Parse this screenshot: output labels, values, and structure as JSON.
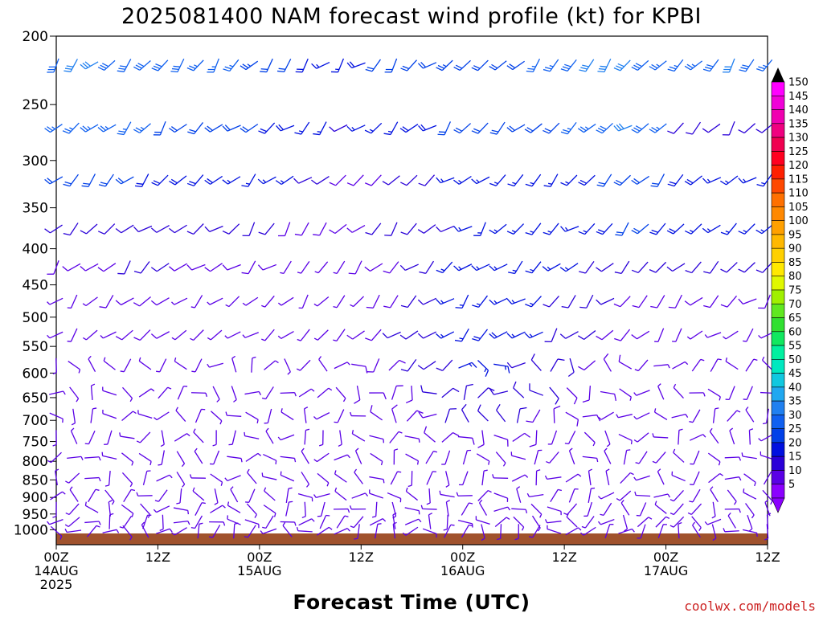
{
  "chart_data": {
    "type": "wind-barb",
    "title": "2025081400 NAM forecast wind profile (kt) for KPBI",
    "xlabel": "Forecast Time (UTC)",
    "y_axis": {
      "scale": "log",
      "inverted": true,
      "range": [
        200,
        1050
      ],
      "tick_labels": [
        200,
        250,
        300,
        350,
        400,
        450,
        500,
        550,
        600,
        650,
        700,
        750,
        800,
        850,
        900,
        950,
        1000
      ]
    },
    "x_axis": {
      "range_hours": [
        0,
        84
      ],
      "ticks": [
        {
          "hour": 0,
          "lines": [
            "00Z",
            "14AUG",
            "2025"
          ]
        },
        {
          "hour": 12,
          "lines": [
            "12Z"
          ]
        },
        {
          "hour": 24,
          "lines": [
            "00Z",
            "15AUG"
          ]
        },
        {
          "hour": 36,
          "lines": [
            "12Z"
          ]
        },
        {
          "hour": 48,
          "lines": [
            "00Z",
            "16AUG"
          ]
        },
        {
          "hour": 60,
          "lines": [
            "12Z"
          ]
        },
        {
          "hour": 72,
          "lines": [
            "00Z",
            "17AUG"
          ]
        },
        {
          "hour": 84,
          "lines": [
            "12Z"
          ]
        }
      ]
    },
    "colorbar": {
      "levels": [
        5,
        10,
        15,
        20,
        25,
        30,
        35,
        40,
        45,
        50,
        55,
        60,
        65,
        70,
        75,
        80,
        85,
        90,
        95,
        100,
        105,
        110,
        115,
        120,
        125,
        130,
        135,
        140,
        145,
        150
      ],
      "colors": [
        "#8b00ff",
        "#5a00e6",
        "#2a00d8",
        "#0010e0",
        "#0040e8",
        "#1060f0",
        "#2080f0",
        "#20a8f0",
        "#10c8e0",
        "#00e8c0",
        "#00f0a0",
        "#10e860",
        "#30e030",
        "#60e820",
        "#a0f000",
        "#e0f800",
        "#ffe800",
        "#ffd000",
        "#ffb800",
        "#ffa000",
        "#ff8800",
        "#ff7000",
        "#ff4800",
        "#ff2000",
        "#ff0020",
        "#f00050",
        "#f00080",
        "#f000b0",
        "#f000d8",
        "#ff00ff"
      ]
    },
    "series": [
      {
        "pressure": 220,
        "speeds": [
          30,
          32,
          32,
          30,
          30,
          30,
          30,
          30,
          28,
          28,
          26,
          25,
          24,
          22,
          20,
          18,
          18,
          20,
          22,
          22,
          22,
          24,
          25,
          24,
          24,
          24,
          24,
          28,
          28,
          30,
          32,
          34,
          32,
          30,
          28,
          28,
          28,
          30,
          32,
          30,
          28
        ]
      },
      {
        "pressure": 270,
        "speeds": [
          28,
          28,
          26,
          26,
          26,
          26,
          24,
          24,
          22,
          22,
          22,
          22,
          20,
          20,
          18,
          16,
          14,
          16,
          18,
          18,
          20,
          20,
          22,
          22,
          22,
          22,
          22,
          24,
          24,
          26,
          28,
          30,
          32,
          30,
          28,
          14,
          12,
          12,
          12,
          14,
          14
        ]
      },
      {
        "pressure": 320,
        "speeds": [
          22,
          22,
          22,
          22,
          22,
          20,
          20,
          20,
          20,
          20,
          18,
          18,
          18,
          16,
          14,
          12,
          10,
          10,
          10,
          12,
          14,
          14,
          16,
          16,
          16,
          16,
          16,
          16,
          16,
          18,
          20,
          22,
          22,
          22,
          22,
          20,
          20,
          18,
          18,
          18,
          16
        ]
      },
      {
        "pressure": 375,
        "speeds": [
          14,
          14,
          14,
          14,
          14,
          14,
          14,
          12,
          12,
          12,
          12,
          12,
          12,
          10,
          10,
          10,
          10,
          10,
          12,
          12,
          14,
          14,
          14,
          16,
          16,
          16,
          18,
          18,
          18,
          18,
          18,
          20,
          22,
          22,
          20,
          20,
          18,
          18,
          18,
          16,
          16
        ]
      },
      {
        "pressure": 425,
        "speeds": [
          10,
          10,
          10,
          10,
          12,
          12,
          12,
          10,
          10,
          10,
          10,
          10,
          10,
          8,
          8,
          8,
          8,
          10,
          10,
          10,
          12,
          14,
          16,
          16,
          18,
          18,
          18,
          18,
          16,
          16,
          14,
          14,
          12,
          12,
          12,
          12,
          12,
          14,
          14,
          14,
          12
        ]
      },
      {
        "pressure": 475,
        "speeds": [
          8,
          8,
          8,
          10,
          10,
          10,
          10,
          8,
          8,
          8,
          8,
          8,
          8,
          8,
          6,
          6,
          8,
          8,
          10,
          10,
          12,
          14,
          16,
          18,
          18,
          18,
          18,
          16,
          14,
          14,
          12,
          12,
          10,
          10,
          10,
          10,
          10,
          10,
          10,
          10,
          10
        ]
      },
      {
        "pressure": 530,
        "speeds": [
          8,
          8,
          8,
          8,
          10,
          10,
          10,
          8,
          8,
          6,
          6,
          6,
          6,
          8,
          8,
          8,
          8,
          10,
          10,
          12,
          12,
          14,
          16,
          18,
          20,
          20,
          18,
          16,
          14,
          12,
          12,
          10,
          10,
          10,
          8,
          8,
          8,
          8,
          8,
          8,
          8
        ]
      },
      {
        "pressure": 585,
        "speeds": [
          8,
          8,
          8,
          8,
          8,
          8,
          8,
          6,
          6,
          6,
          6,
          6,
          6,
          6,
          8,
          8,
          8,
          10,
          10,
          10,
          12,
          12,
          14,
          16,
          16,
          16,
          14,
          14,
          12,
          12,
          10,
          10,
          10,
          8,
          8,
          8,
          8,
          8,
          8,
          8,
          8
        ]
      },
      {
        "pressure": 640,
        "speeds": [
          8,
          8,
          8,
          8,
          8,
          8,
          6,
          6,
          6,
          6,
          6,
          6,
          6,
          8,
          8,
          8,
          8,
          10,
          10,
          10,
          10,
          12,
          12,
          14,
          14,
          14,
          12,
          12,
          12,
          10,
          10,
          10,
          8,
          8,
          8,
          8,
          8,
          8,
          8,
          8,
          8
        ]
      },
      {
        "pressure": 690,
        "speeds": [
          8,
          8,
          8,
          8,
          8,
          8,
          6,
          6,
          6,
          6,
          6,
          6,
          6,
          6,
          8,
          8,
          8,
          8,
          10,
          10,
          10,
          10,
          12,
          12,
          12,
          12,
          12,
          10,
          10,
          10,
          10,
          8,
          8,
          8,
          8,
          8,
          8,
          8,
          8,
          8,
          8
        ]
      },
      {
        "pressure": 740,
        "speeds": [
          8,
          8,
          8,
          6,
          6,
          6,
          6,
          6,
          6,
          6,
          6,
          6,
          6,
          6,
          6,
          8,
          8,
          8,
          8,
          8,
          8,
          10,
          10,
          10,
          10,
          10,
          10,
          10,
          8,
          8,
          8,
          8,
          8,
          8,
          8,
          8,
          8,
          8,
          8,
          8,
          8
        ]
      },
      {
        "pressure": 790,
        "speeds": [
          6,
          6,
          6,
          6,
          6,
          6,
          6,
          6,
          6,
          6,
          6,
          6,
          6,
          6,
          6,
          6,
          8,
          8,
          8,
          8,
          8,
          8,
          8,
          8,
          8,
          8,
          8,
          8,
          8,
          8,
          8,
          8,
          8,
          6,
          6,
          6,
          6,
          6,
          6,
          6,
          6
        ]
      },
      {
        "pressure": 845,
        "speeds": [
          6,
          6,
          6,
          6,
          6,
          6,
          6,
          6,
          6,
          6,
          6,
          6,
          6,
          6,
          6,
          6,
          6,
          6,
          6,
          8,
          8,
          8,
          8,
          8,
          8,
          8,
          8,
          8,
          8,
          8,
          8,
          8,
          6,
          6,
          6,
          6,
          6,
          6,
          6,
          6,
          6
        ]
      },
      {
        "pressure": 895,
        "speeds": [
          6,
          6,
          6,
          6,
          6,
          6,
          6,
          6,
          6,
          6,
          6,
          6,
          6,
          6,
          6,
          6,
          6,
          6,
          6,
          6,
          6,
          6,
          6,
          6,
          6,
          6,
          6,
          6,
          6,
          6,
          6,
          6,
          6,
          6,
          6,
          6,
          6,
          6,
          6,
          6,
          6
        ]
      },
      {
        "pressure": 935,
        "speeds": [
          6,
          6,
          6,
          6,
          6,
          6,
          6,
          6,
          6,
          6,
          6,
          6,
          6,
          6,
          6,
          6,
          6,
          6,
          6,
          6,
          6,
          6,
          6,
          6,
          6,
          6,
          6,
          6,
          6,
          6,
          6,
          6,
          6,
          6,
          6,
          6,
          6,
          6,
          6,
          6,
          6
        ]
      },
      {
        "pressure": 975,
        "speeds": [
          6,
          6,
          6,
          6,
          6,
          6,
          6,
          6,
          6,
          6,
          6,
          6,
          6,
          6,
          6,
          6,
          6,
          6,
          6,
          6,
          6,
          6,
          6,
          6,
          6,
          6,
          6,
          6,
          6,
          6,
          6,
          6,
          6,
          6,
          6,
          6,
          6,
          6,
          6,
          6,
          6
        ]
      },
      {
        "pressure": 1005,
        "speeds": [
          6,
          6,
          6,
          6,
          6,
          6,
          6,
          6,
          6,
          6,
          6,
          6,
          6,
          6,
          6,
          6,
          6,
          6,
          6,
          6,
          6,
          6,
          6,
          6,
          6,
          6,
          6,
          6,
          6,
          6,
          6,
          6,
          6,
          6,
          6,
          6,
          6,
          6,
          6,
          6,
          6
        ]
      }
    ],
    "time_step_hours": 2.1,
    "surface_fill_color": "#a0522d"
  },
  "credit": "coolwx.com/models"
}
